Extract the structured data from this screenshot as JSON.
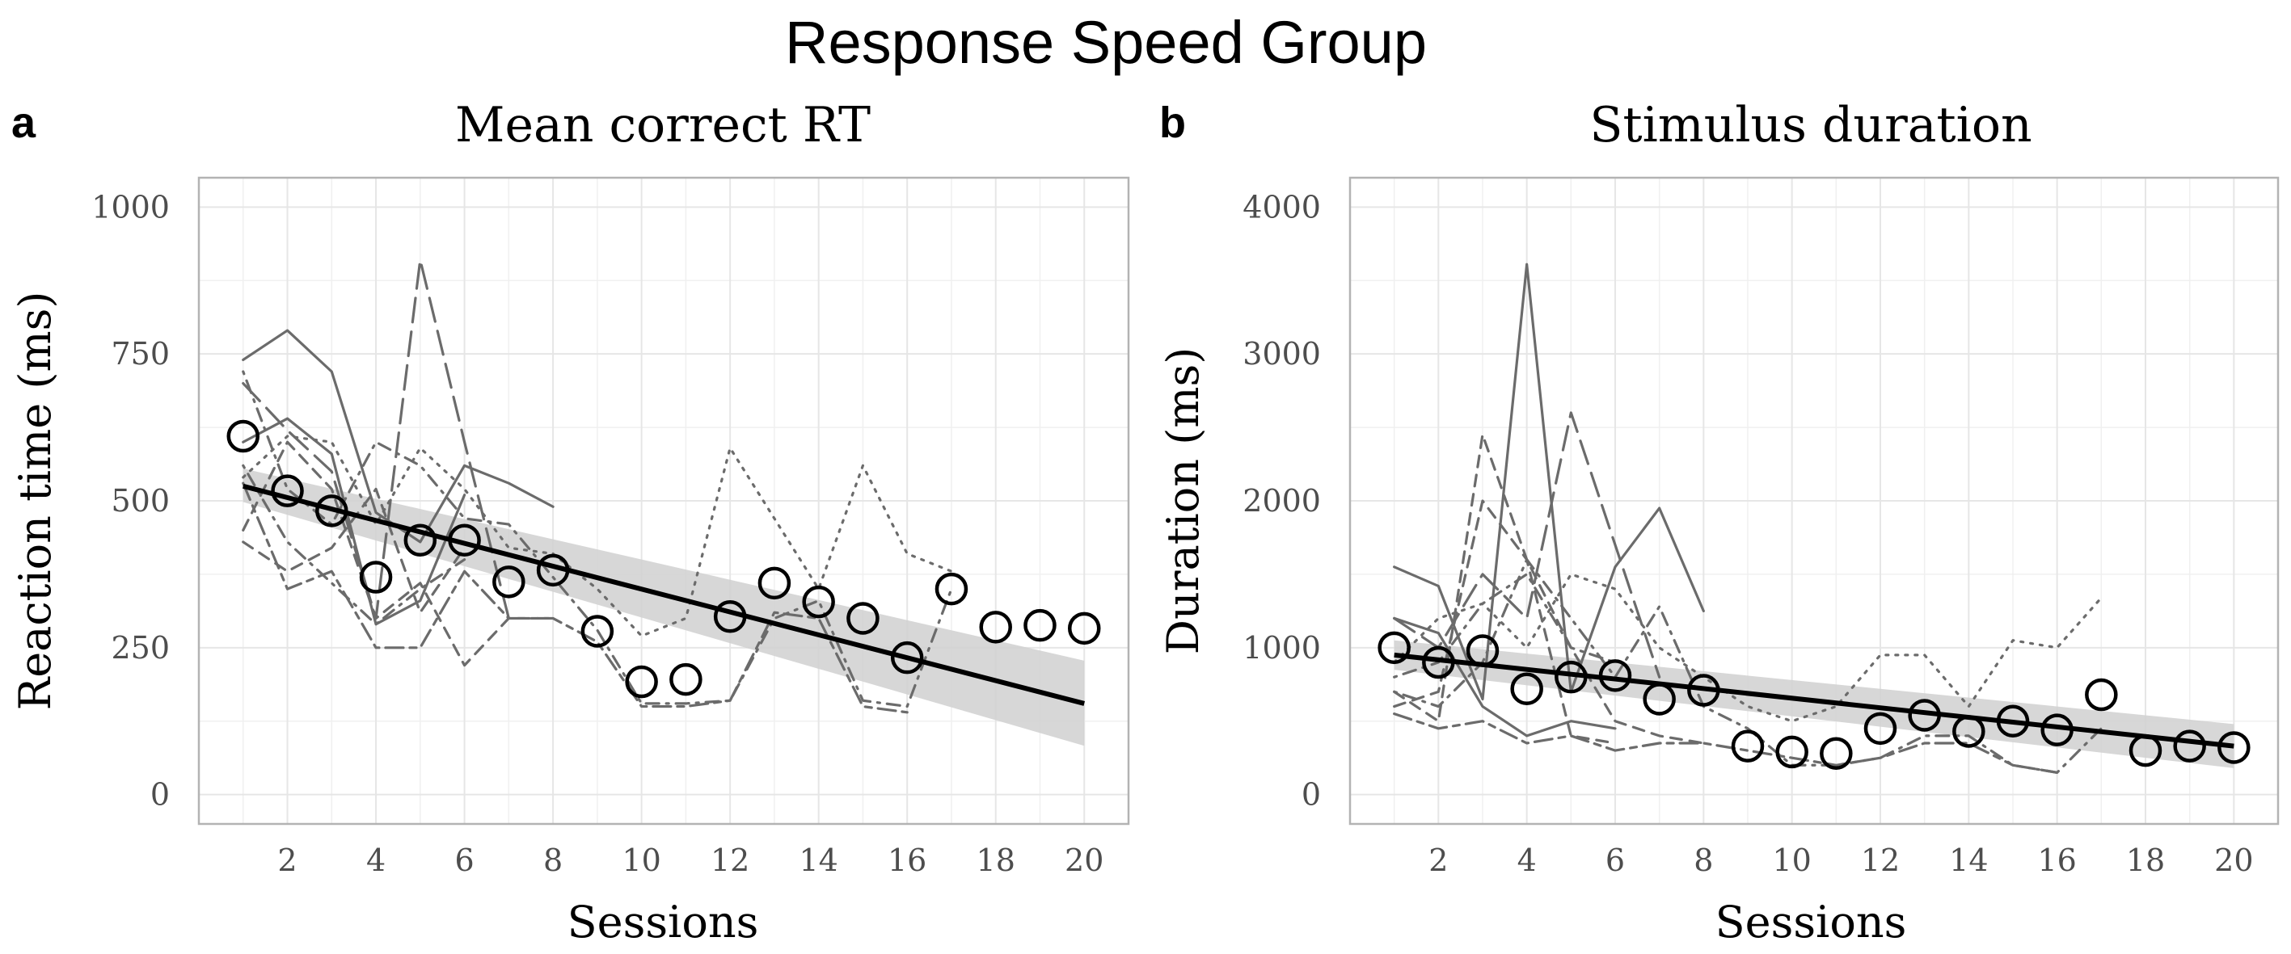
{
  "figure": {
    "title": "Response Speed Group"
  },
  "chart_data": [
    {
      "panel": "a",
      "type": "line",
      "title": "Mean correct RT",
      "xlabel": "Sessions",
      "ylabel": "Reaction time (ms)",
      "xlim": [
        0,
        21
      ],
      "ylim": [
        -50,
        1050
      ],
      "x_ticks": [
        2,
        4,
        6,
        8,
        10,
        12,
        14,
        16,
        18,
        20
      ],
      "y_ticks": [
        0,
        250,
        500,
        750,
        1000
      ],
      "grid": true,
      "colors": {
        "individuals": "#6b6b6b",
        "mean_points": "#000000",
        "fit": "#000000",
        "ribbon": "#d0d0d0",
        "grid": "#e6e6e6",
        "border": "#b3b3b3"
      },
      "mean_points": {
        "x": [
          1,
          2,
          3,
          4,
          5,
          6,
          7,
          8,
          9,
          10,
          11,
          12,
          13,
          14,
          15,
          16,
          17,
          18,
          19,
          20
        ],
        "y": [
          610,
          517,
          483,
          370,
          433,
          433,
          362,
          382,
          278,
          192,
          196,
          303,
          360,
          328,
          300,
          233,
          350,
          285,
          288,
          283
        ]
      },
      "fit": {
        "x": [
          1,
          20
        ],
        "y": [
          525,
          155
        ]
      },
      "ribbon": {
        "x": [
          1,
          20
        ],
        "upper": [
          555,
          228
        ],
        "lower": [
          498,
          83
        ]
      },
      "series": [
        {
          "style": "solid",
          "x": [
            1,
            2,
            3,
            4,
            5,
            6,
            7,
            8
          ],
          "y": [
            740,
            790,
            720,
            480,
            430,
            560,
            530,
            490
          ]
        },
        {
          "style": "longdash",
          "x": [
            1,
            2,
            3,
            4,
            5,
            6,
            7
          ],
          "y": [
            700,
            620,
            550,
            300,
            910,
            600,
            300
          ]
        },
        {
          "style": "dashed",
          "x": [
            1,
            2,
            3,
            4,
            5,
            6,
            7,
            8
          ],
          "y": [
            450,
            600,
            520,
            300,
            360,
            220,
            300,
            300
          ]
        },
        {
          "style": "dotted",
          "x": [
            1,
            2,
            3,
            4,
            5,
            6,
            7,
            8,
            9,
            10,
            11,
            12,
            13,
            14,
            15,
            16,
            17
          ],
          "y": [
            540,
            610,
            600,
            460,
            590,
            520,
            420,
            410,
            350,
            270,
            300,
            590,
            470,
            350,
            560,
            410,
            380
          ]
        },
        {
          "style": "dotdash",
          "x": [
            1,
            2,
            3,
            4,
            5,
            6,
            7,
            8,
            9,
            10,
            11,
            12,
            13,
            14,
            15,
            16,
            17
          ],
          "y": [
            720,
            520,
            460,
            600,
            560,
            470,
            460,
            370,
            280,
            155,
            155,
            160,
            300,
            330,
            160,
            150,
            350
          ]
        },
        {
          "style": "twodash",
          "x": [
            1,
            2,
            3,
            4,
            5,
            6,
            7,
            8,
            9,
            10,
            11,
            12,
            13,
            14,
            15,
            16
          ],
          "y": [
            530,
            350,
            380,
            250,
            250,
            380,
            300,
            300,
            260,
            150,
            150,
            160,
            310,
            300,
            150,
            140
          ]
        },
        {
          "style": "solid",
          "x": [
            1,
            2,
            3,
            4,
            5,
            6
          ],
          "y": [
            600,
            640,
            580,
            290,
            330,
            510
          ]
        },
        {
          "style": "dashed",
          "x": [
            1,
            2,
            3,
            4,
            5,
            6
          ],
          "y": [
            430,
            380,
            420,
            520,
            310,
            420
          ]
        },
        {
          "style": "dotdash",
          "x": [
            1,
            2,
            3,
            4,
            5,
            6
          ],
          "y": [
            560,
            430,
            360,
            290,
            350,
            400
          ]
        }
      ]
    },
    {
      "panel": "b",
      "type": "line",
      "title": "Stimulus duration",
      "xlabel": "Sessions",
      "ylabel": "Duration (ms)",
      "xlim": [
        0,
        21
      ],
      "ylim": [
        -200,
        4200
      ],
      "x_ticks": [
        2,
        4,
        6,
        8,
        10,
        12,
        14,
        16,
        18,
        20
      ],
      "y_ticks": [
        0,
        1000,
        2000,
        3000,
        4000
      ],
      "grid": true,
      "colors": {
        "individuals": "#6b6b6b",
        "mean_points": "#000000",
        "fit": "#000000",
        "ribbon": "#d0d0d0",
        "grid": "#e6e6e6",
        "border": "#b3b3b3"
      },
      "mean_points": {
        "x": [
          1,
          2,
          3,
          4,
          5,
          6,
          7,
          8,
          9,
          10,
          11,
          12,
          13,
          14,
          15,
          16,
          17,
          18,
          19,
          20
        ],
        "y": [
          1000,
          900,
          980,
          720,
          800,
          810,
          650,
          710,
          330,
          290,
          280,
          450,
          540,
          430,
          500,
          440,
          680,
          300,
          330,
          320
        ]
      },
      "fit": {
        "x": [
          1,
          20
        ],
        "y": [
          950,
          330
        ]
      },
      "ribbon": {
        "x": [
          1,
          20
        ],
        "upper": [
          1050,
          480
        ],
        "lower": [
          850,
          180
        ]
      },
      "series": [
        {
          "style": "solid",
          "x": [
            1,
            2,
            3,
            4,
            5,
            6,
            7,
            8
          ],
          "y": [
            1550,
            1420,
            650,
            3610,
            700,
            1550,
            1950,
            1250
          ]
        },
        {
          "style": "longdash",
          "x": [
            1,
            2,
            3,
            4,
            5,
            6,
            7
          ],
          "y": [
            1200,
            1000,
            1500,
            1200,
            2600,
            1700,
            800
          ]
        },
        {
          "style": "dashed",
          "x": [
            1,
            2,
            3,
            4,
            5,
            6,
            7,
            8
          ],
          "y": [
            700,
            500,
            2450,
            1600,
            1000,
            500,
            400,
            350
          ]
        },
        {
          "style": "dotted",
          "x": [
            1,
            2,
            3,
            4,
            5,
            6,
            7,
            8,
            9,
            10,
            11,
            12,
            13,
            14,
            15,
            16,
            17
          ],
          "y": [
            900,
            1200,
            1300,
            1000,
            1500,
            1400,
            1000,
            800,
            600,
            500,
            600,
            950,
            950,
            600,
            1050,
            1000,
            1340
          ]
        },
        {
          "style": "dotdash",
          "x": [
            1,
            2,
            3,
            4,
            5,
            6,
            7,
            8,
            9,
            10,
            11,
            12,
            13,
            14,
            15,
            16,
            17
          ],
          "y": [
            700,
            600,
            900,
            1600,
            1200,
            800,
            1280,
            600,
            450,
            200,
            200,
            250,
            400,
            400,
            200,
            150,
            450
          ]
        },
        {
          "style": "twodash",
          "x": [
            1,
            2,
            3,
            4,
            5,
            6,
            7,
            8,
            9,
            10,
            11,
            12,
            13,
            14,
            15,
            16
          ],
          "y": [
            550,
            450,
            500,
            350,
            400,
            300,
            350,
            350,
            300,
            250,
            200,
            250,
            350,
            350,
            200,
            150
          ]
        },
        {
          "style": "solid",
          "x": [
            1,
            2,
            3,
            4,
            5,
            6
          ],
          "y": [
            1200,
            1100,
            600,
            400,
            500,
            450
          ]
        },
        {
          "style": "dashed",
          "x": [
            1,
            2,
            3,
            4,
            5,
            6
          ],
          "y": [
            600,
            700,
            2000,
            1600,
            400,
            350
          ]
        },
        {
          "style": "dotdash",
          "x": [
            1,
            2,
            3,
            4,
            5,
            6
          ],
          "y": [
            800,
            900,
            1300,
            1500,
            1000,
            900
          ]
        }
      ]
    }
  ]
}
